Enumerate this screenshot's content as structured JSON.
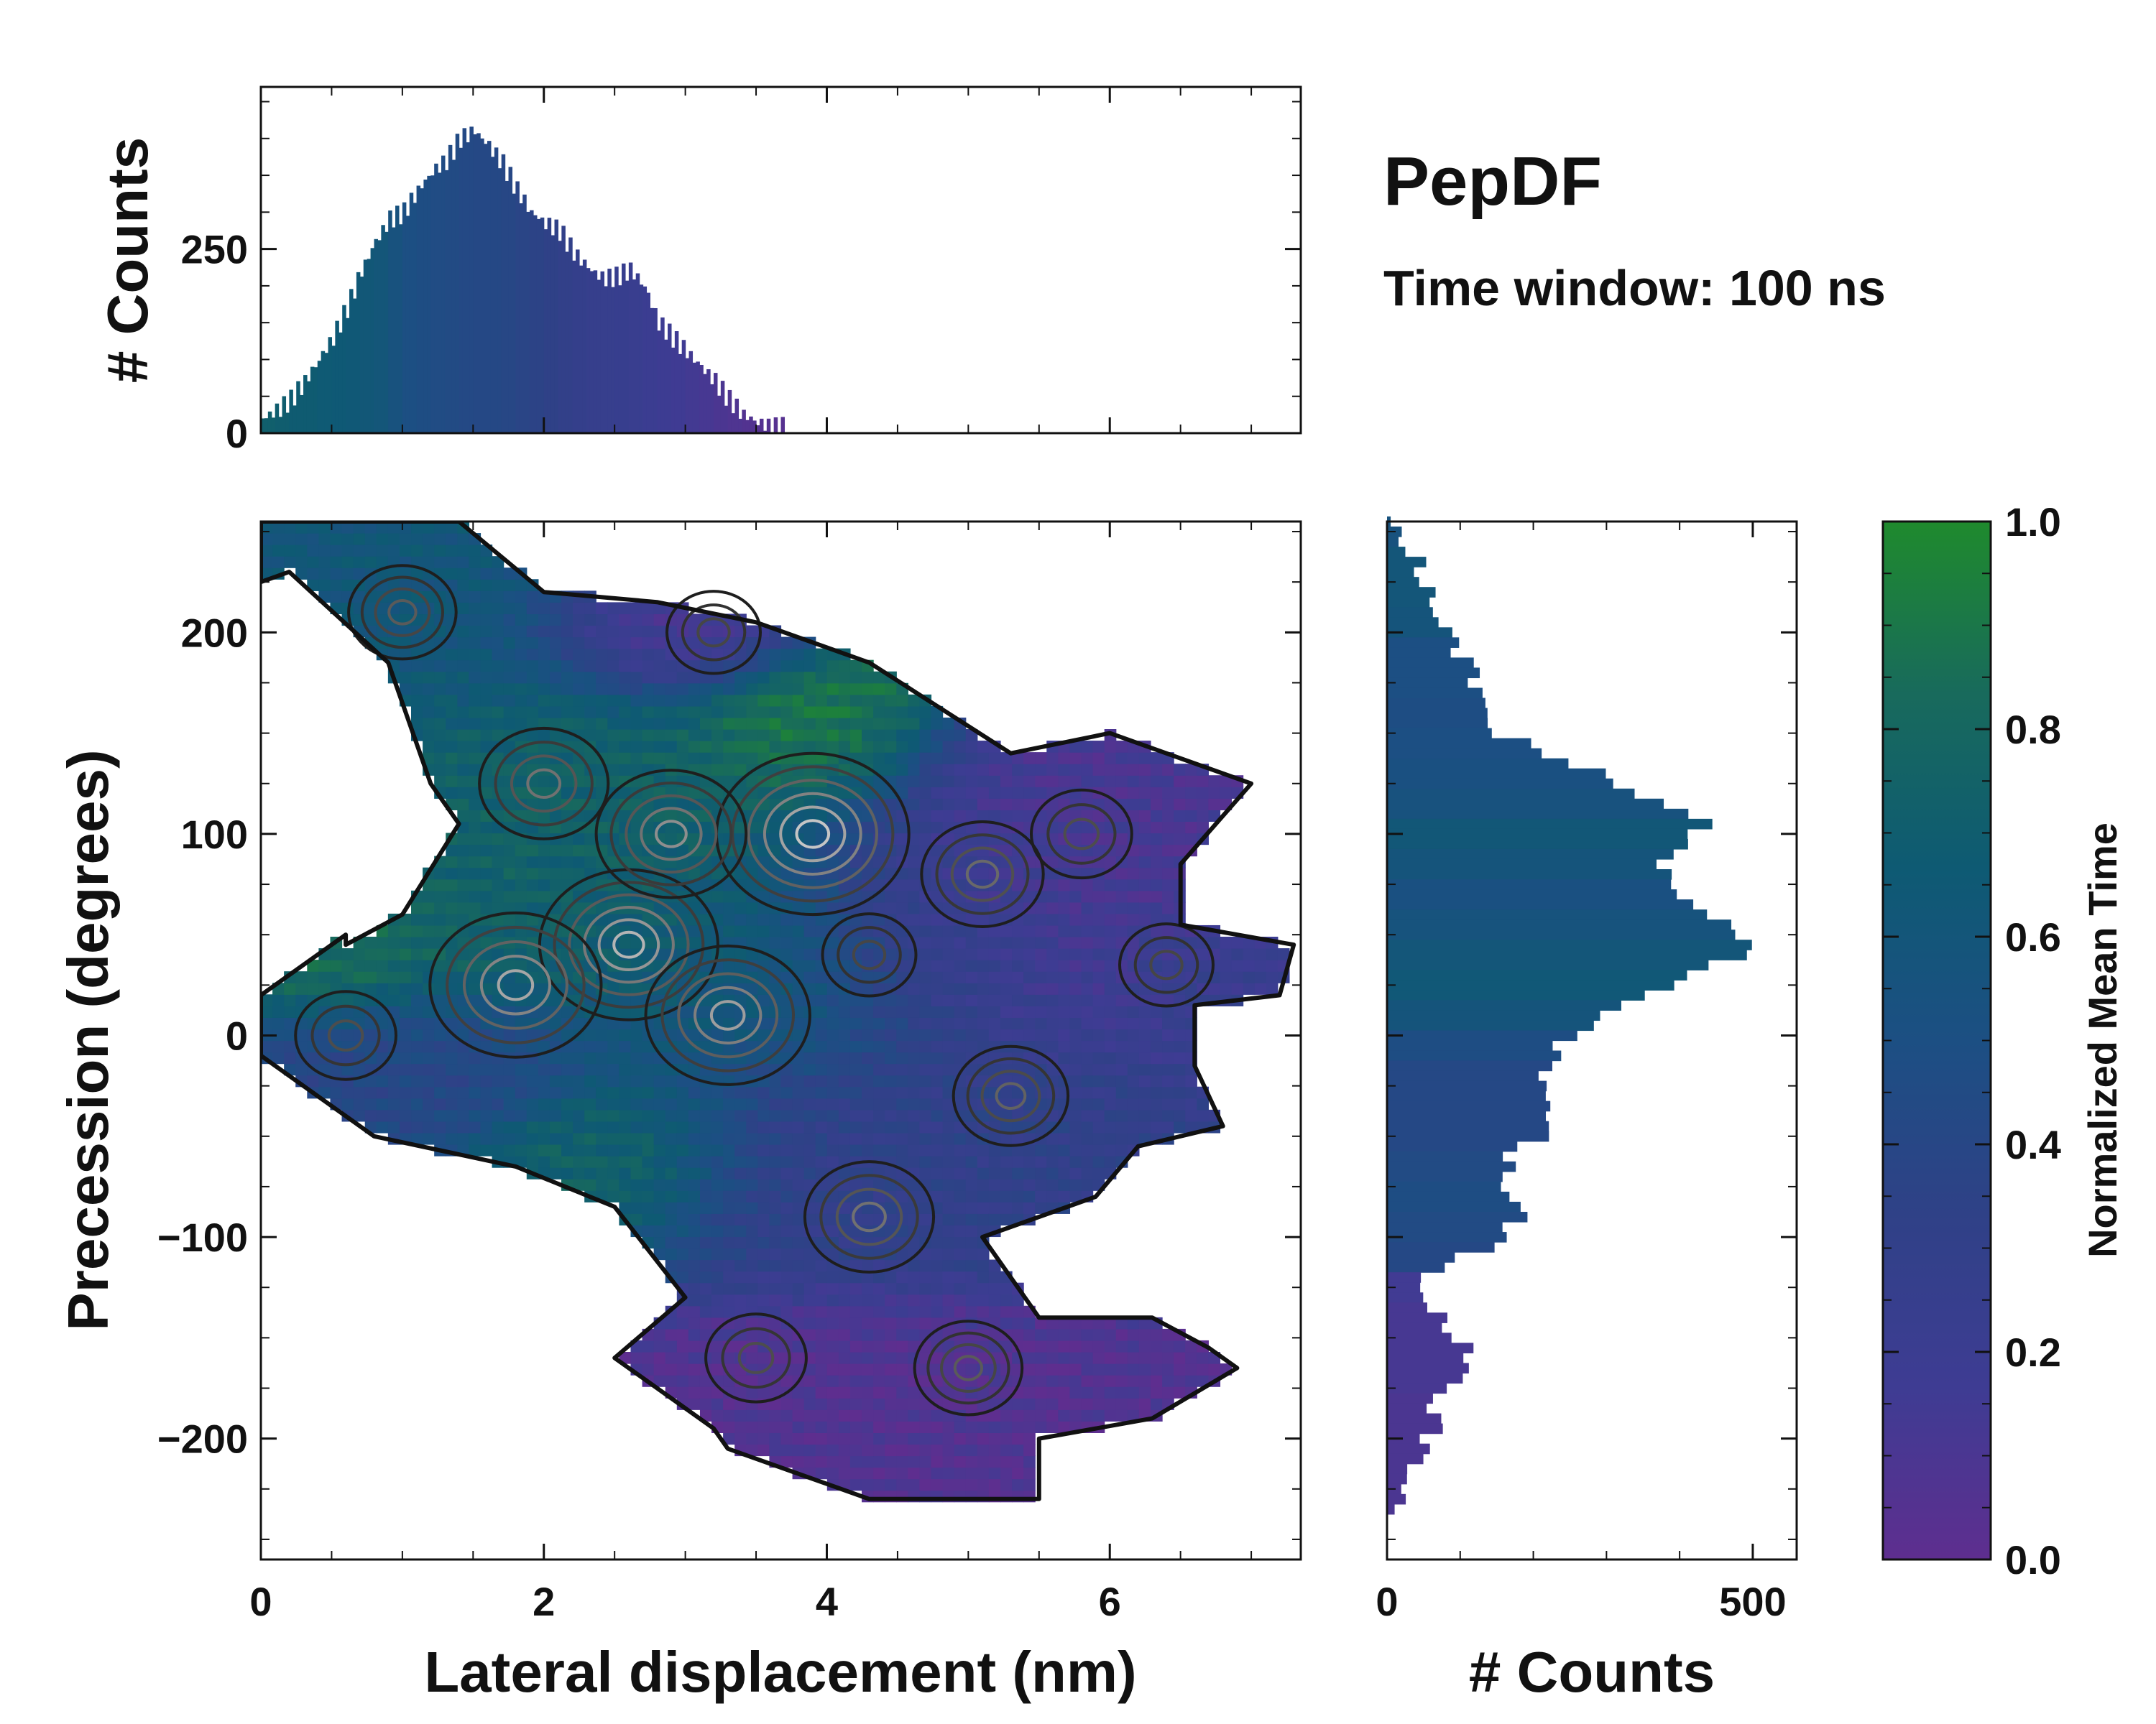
{
  "chart_data": {
    "type": "heatmap",
    "title": "PepDF",
    "subtitle": "Time window: 100 ns",
    "main": {
      "xlabel": "Lateral displacement (nm)",
      "ylabel": "Precession (degrees)",
      "xlim": [
        0,
        7.35
      ],
      "ylim": [
        -260,
        255
      ],
      "xticks": [
        0,
        2,
        4,
        6
      ],
      "xtick_labels": [
        "0",
        "2",
        "4",
        "6"
      ],
      "yticks": [
        -200,
        -100,
        0,
        100,
        200
      ],
      "ytick_labels": [
        "−200",
        "−100",
        "0",
        "100",
        "200"
      ],
      "color_value": "Normalized Mean Time",
      "regions": [
        {
          "cx": 0.9,
          "cy": 215,
          "rx": 1.1,
          "ry": 45,
          "value": 0.65
        },
        {
          "cx": 0.5,
          "cy": 45,
          "rx": 0.6,
          "ry": 30,
          "value": 0.88
        },
        {
          "cx": 2.3,
          "cy": 80,
          "rx": 1.4,
          "ry": 70,
          "value": 0.78
        },
        {
          "cx": 3.4,
          "cy": 30,
          "rx": 0.9,
          "ry": 45,
          "value": 0.62
        },
        {
          "cx": 4.0,
          "cy": 155,
          "rx": 0.6,
          "ry": 35,
          "value": 0.95
        },
        {
          "cx": 5.7,
          "cy": 90,
          "rx": 1.1,
          "ry": 55,
          "value": 0.15
        },
        {
          "cx": 4.8,
          "cy": 60,
          "rx": 0.8,
          "ry": 50,
          "value": 0.3
        },
        {
          "cx": 1.2,
          "cy": -10,
          "rx": 1.0,
          "ry": 25,
          "value": 0.42
        },
        {
          "cx": 4.3,
          "cy": -60,
          "rx": 1.4,
          "ry": 45,
          "value": 0.35
        },
        {
          "cx": 2.6,
          "cy": -60,
          "rx": 0.6,
          "ry": 30,
          "value": 0.85
        },
        {
          "cx": 3.0,
          "cy": 205,
          "rx": 0.8,
          "ry": 25,
          "value": 0.14
        },
        {
          "cx": 4.6,
          "cy": -190,
          "rx": 1.2,
          "ry": 40,
          "value": 0.1
        },
        {
          "cx": 6.6,
          "cy": 30,
          "rx": 0.5,
          "ry": 25,
          "value": 0.28
        }
      ],
      "density_peaks": [
        {
          "x": 3.9,
          "y": 100,
          "weight": 1.0
        },
        {
          "x": 2.6,
          "y": 45,
          "weight": 0.9
        },
        {
          "x": 1.8,
          "y": 25,
          "weight": 0.85
        },
        {
          "x": 3.3,
          "y": 10,
          "weight": 0.8
        },
        {
          "x": 2.9,
          "y": 100,
          "weight": 0.7
        },
        {
          "x": 2.0,
          "y": 125,
          "weight": 0.55
        },
        {
          "x": 5.1,
          "y": 80,
          "weight": 0.5
        },
        {
          "x": 4.3,
          "y": -90,
          "weight": 0.55
        },
        {
          "x": 5.3,
          "y": -30,
          "weight": 0.45
        },
        {
          "x": 5.0,
          "y": -165,
          "weight": 0.4
        },
        {
          "x": 3.5,
          "y": -160,
          "weight": 0.35
        },
        {
          "x": 1.0,
          "y": 210,
          "weight": 0.4
        },
        {
          "x": 5.8,
          "y": 100,
          "weight": 0.35
        },
        {
          "x": 6.4,
          "y": 35,
          "weight": 0.3
        },
        {
          "x": 0.6,
          "y": 0,
          "weight": 0.35
        },
        {
          "x": 4.3,
          "y": 40,
          "weight": 0.3
        },
        {
          "x": 3.2,
          "y": 200,
          "weight": 0.3
        }
      ],
      "envelope_outline": [
        [
          0,
          255
        ],
        [
          1.4,
          255
        ],
        [
          2.0,
          220
        ],
        [
          2.8,
          215
        ],
        [
          3.5,
          205
        ],
        [
          4.3,
          185
        ],
        [
          5.3,
          140
        ],
        [
          6.0,
          150
        ],
        [
          7.0,
          125
        ],
        [
          6.5,
          85
        ],
        [
          6.5,
          55
        ],
        [
          7.3,
          45
        ],
        [
          7.2,
          20
        ],
        [
          6.6,
          15
        ],
        [
          6.6,
          -15
        ],
        [
          6.8,
          -45
        ],
        [
          6.2,
          -55
        ],
        [
          5.9,
          -80
        ],
        [
          5.1,
          -100
        ],
        [
          5.5,
          -140
        ],
        [
          6.3,
          -140
        ],
        [
          6.7,
          -155
        ],
        [
          6.9,
          -165
        ],
        [
          6.3,
          -190
        ],
        [
          5.5,
          -200
        ],
        [
          5.5,
          -230
        ],
        [
          4.3,
          -230
        ],
        [
          3.3,
          -205
        ],
        [
          3.2,
          -195
        ],
        [
          2.5,
          -160
        ],
        [
          3.0,
          -130
        ],
        [
          2.5,
          -85
        ],
        [
          1.8,
          -65
        ],
        [
          0.8,
          -50
        ],
        [
          0,
          -10
        ],
        [
          0,
          20
        ],
        [
          0.6,
          50
        ],
        [
          0.6,
          45
        ],
        [
          1.0,
          60
        ],
        [
          1.4,
          105
        ],
        [
          1.2,
          125
        ],
        [
          0.9,
          185
        ],
        [
          0.2,
          230
        ],
        [
          0,
          225
        ]
      ]
    },
    "top_histogram": {
      "ylabel": "# Counts",
      "ylim": [
        0,
        470
      ],
      "yticks": [
        0,
        250
      ],
      "ytick_labels": [
        "0",
        "250"
      ],
      "bin_start": 0,
      "bin_width": 0.1,
      "values": [
        20,
        30,
        45,
        70,
        100,
        130,
        170,
        220,
        260,
        290,
        300,
        330,
        355,
        370,
        400,
        410,
        390,
        365,
        330,
        300,
        285,
        275,
        245,
        225,
        210,
        212,
        222,
        200,
        150,
        130,
        110,
        90,
        70,
        45,
        25,
        15,
        8
      ],
      "bar_color_values": [
        0.72,
        0.7,
        0.68,
        0.68,
        0.66,
        0.65,
        0.64,
        0.62,
        0.6,
        0.55,
        0.5,
        0.48,
        0.46,
        0.45,
        0.43,
        0.42,
        0.42,
        0.4,
        0.38,
        0.36,
        0.33,
        0.3,
        0.28,
        0.26,
        0.25,
        0.24,
        0.22,
        0.2,
        0.18,
        0.16,
        0.14,
        0.12,
        0.1,
        0.08,
        0.06,
        0.05,
        0.04
      ]
    },
    "right_histogram": {
      "xlabel": "# Counts",
      "xlim": [
        0,
        560
      ],
      "xticks": [
        0,
        500
      ],
      "xtick_labels": [
        "0",
        "500"
      ],
      "bins": [
        {
          "y": 250,
          "count": 5,
          "value": 0.55
        },
        {
          "y": 235,
          "count": 35,
          "value": 0.6
        },
        {
          "y": 220,
          "count": 55,
          "value": 0.6
        },
        {
          "y": 205,
          "count": 65,
          "value": 0.58
        },
        {
          "y": 190,
          "count": 90,
          "value": 0.5
        },
        {
          "y": 175,
          "count": 115,
          "value": 0.5
        },
        {
          "y": 160,
          "count": 130,
          "value": 0.48
        },
        {
          "y": 145,
          "count": 150,
          "value": 0.5
        },
        {
          "y": 130,
          "count": 260,
          "value": 0.52
        },
        {
          "y": 115,
          "count": 345,
          "value": 0.55
        },
        {
          "y": 100,
          "count": 440,
          "value": 0.62
        },
        {
          "y": 85,
          "count": 380,
          "value": 0.58
        },
        {
          "y": 70,
          "count": 380,
          "value": 0.52
        },
        {
          "y": 55,
          "count": 440,
          "value": 0.56
        },
        {
          "y": 40,
          "count": 510,
          "value": 0.6
        },
        {
          "y": 25,
          "count": 420,
          "value": 0.63
        },
        {
          "y": 10,
          "count": 320,
          "value": 0.58
        },
        {
          "y": -5,
          "count": 250,
          "value": 0.48
        },
        {
          "y": -20,
          "count": 215,
          "value": 0.42
        },
        {
          "y": -35,
          "count": 215,
          "value": 0.42
        },
        {
          "y": -50,
          "count": 230,
          "value": 0.42
        },
        {
          "y": -65,
          "count": 170,
          "value": 0.45
        },
        {
          "y": -80,
          "count": 160,
          "value": 0.48
        },
        {
          "y": -95,
          "count": 185,
          "value": 0.45
        },
        {
          "y": -110,
          "count": 135,
          "value": 0.42
        },
        {
          "y": -125,
          "count": 40,
          "value": 0.15
        },
        {
          "y": -140,
          "count": 60,
          "value": 0.12
        },
        {
          "y": -155,
          "count": 100,
          "value": 0.12
        },
        {
          "y": -170,
          "count": 120,
          "value": 0.12
        },
        {
          "y": -185,
          "count": 60,
          "value": 0.1
        },
        {
          "y": -200,
          "count": 65,
          "value": 0.1
        },
        {
          "y": -215,
          "count": 40,
          "value": 0.1
        },
        {
          "y": -230,
          "count": 20,
          "value": 0.1
        }
      ]
    },
    "colorbar": {
      "label": "Normalized Mean Time",
      "ticks": [
        0.0,
        0.2,
        0.4,
        0.6,
        0.8,
        1.0
      ],
      "tick_labels": [
        "0.0",
        "0.2",
        "0.4",
        "0.6",
        "0.8",
        "1.0"
      ],
      "colors": [
        "#5e2e8f",
        "#3e3c93",
        "#2f4187",
        "#1c4f83",
        "#0e5a73",
        "#186a5c",
        "#1f8a2d"
      ]
    }
  }
}
